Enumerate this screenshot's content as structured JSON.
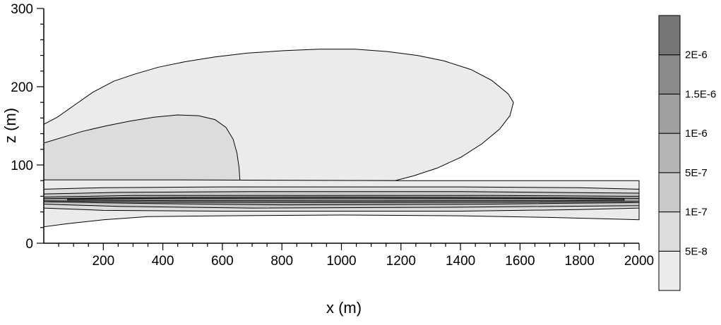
{
  "chart_data": {
    "type": "contour",
    "title": "",
    "xlabel": "x (m)",
    "ylabel": "z (m)",
    "xlim": [
      0,
      2000
    ],
    "ylim": [
      0,
      300
    ],
    "x_major_ticks": [
      200,
      400,
      600,
      800,
      1000,
      1200,
      1400,
      1600,
      1800,
      2000
    ],
    "y_major_ticks": [
      0,
      100,
      200,
      300
    ],
    "x_minor_step": 50,
    "y_minor_step": 20,
    "grid": false,
    "legend_position": "right-colorbar",
    "colorbar": {
      "labels": [
        "5E-8",
        "1E-7",
        "5E-7",
        "1E-6",
        "1.5E-6",
        "2E-6"
      ],
      "colors_bottom_to_top": [
        "#ebebeb",
        "#dcdcdc",
        "#c9c9c9",
        "#b5b5b5",
        "#a0a0a0",
        "#8a8a8a",
        "#757575"
      ]
    },
    "regions": [
      {
        "level": "5E-8-upper-lobe",
        "color": "#ebebeb",
        "points": [
          [
            0,
            80
          ],
          [
            0,
            152
          ],
          [
            45,
            161
          ],
          [
            105,
            177
          ],
          [
            165,
            193
          ],
          [
            235,
            207
          ],
          [
            305,
            216
          ],
          [
            385,
            225
          ],
          [
            475,
            232
          ],
          [
            575,
            238
          ],
          [
            685,
            243
          ],
          [
            805,
            246
          ],
          [
            925,
            248
          ],
          [
            1045,
            248
          ],
          [
            1155,
            245
          ],
          [
            1255,
            240
          ],
          [
            1345,
            233
          ],
          [
            1435,
            222
          ],
          [
            1505,
            208
          ],
          [
            1560,
            191
          ],
          [
            1578,
            180
          ],
          [
            1566,
            163
          ],
          [
            1532,
            146
          ],
          [
            1472,
            127
          ],
          [
            1402,
            110
          ],
          [
            1322,
            96
          ],
          [
            1242,
            86
          ],
          [
            1180,
            80
          ]
        ]
      },
      {
        "level": "1E-7-inner-lobe",
        "color": "#dcdcdc",
        "points": [
          [
            0,
            80
          ],
          [
            0,
            128
          ],
          [
            60,
            135
          ],
          [
            130,
            143
          ],
          [
            210,
            150
          ],
          [
            290,
            156
          ],
          [
            370,
            161
          ],
          [
            450,
            164
          ],
          [
            520,
            163
          ],
          [
            575,
            158
          ],
          [
            612,
            148
          ],
          [
            636,
            133
          ],
          [
            649,
            115
          ],
          [
            656,
            97
          ],
          [
            659,
            80
          ]
        ]
      },
      {
        "level": "5E-8-band",
        "color": "#ebebeb",
        "points": [
          [
            0,
            81
          ],
          [
            400,
            81
          ],
          [
            1200,
            80
          ],
          [
            2000,
            80
          ],
          [
            2000,
            30
          ],
          [
            1700,
            33
          ],
          [
            1400,
            35
          ],
          [
            1000,
            36
          ],
          [
            600,
            35
          ],
          [
            350,
            34
          ],
          [
            200,
            30
          ],
          [
            80,
            25
          ],
          [
            0,
            21
          ]
        ]
      },
      {
        "level": "1E-7-band",
        "color": "#dcdcdc",
        "points": [
          [
            0,
            69
          ],
          [
            200,
            71
          ],
          [
            600,
            72
          ],
          [
            1400,
            72
          ],
          [
            1800,
            71
          ],
          [
            2000,
            69
          ],
          [
            2000,
            45
          ],
          [
            1800,
            43
          ],
          [
            1400,
            41
          ],
          [
            600,
            41
          ],
          [
            200,
            42
          ],
          [
            0,
            45
          ]
        ]
      },
      {
        "level": "5E-7-band",
        "color": "#c9c9c9",
        "points": [
          [
            0,
            63
          ],
          [
            250,
            65
          ],
          [
            700,
            66
          ],
          [
            1400,
            66
          ],
          [
            2000,
            64
          ],
          [
            2000,
            48
          ],
          [
            1400,
            46
          ],
          [
            700,
            45
          ],
          [
            250,
            47
          ],
          [
            0,
            50
          ]
        ]
      },
      {
        "level": "1E-6-band",
        "color": "#b5b5b5",
        "points": [
          [
            0,
            59
          ],
          [
            300,
            61
          ],
          [
            800,
            61
          ],
          [
            1500,
            61
          ],
          [
            2000,
            60
          ],
          [
            2000,
            52
          ],
          [
            1500,
            50
          ],
          [
            800,
            49
          ],
          [
            300,
            51
          ],
          [
            0,
            53
          ]
        ]
      },
      {
        "level": "1.5E-6-band",
        "color": "#a0a0a0",
        "points": [
          [
            0,
            57
          ],
          [
            350,
            58.5
          ],
          [
            900,
            59
          ],
          [
            1600,
            58.5
          ],
          [
            2000,
            57.3
          ],
          [
            2000,
            53.5
          ],
          [
            1600,
            52.3
          ],
          [
            900,
            52
          ],
          [
            350,
            52.5
          ],
          [
            0,
            54.3
          ]
        ]
      },
      {
        "level": "2E-6-band",
        "color": "#8a8a8a",
        "points": [
          [
            80,
            56.6
          ],
          [
            450,
            57.4
          ],
          [
            1000,
            57.6
          ],
          [
            1700,
            57.2
          ],
          [
            1950,
            56.4
          ],
          [
            1950,
            54.9
          ],
          [
            1700,
            54.3
          ],
          [
            1000,
            54
          ],
          [
            450,
            54.3
          ],
          [
            80,
            55.2
          ]
        ]
      }
    ]
  }
}
